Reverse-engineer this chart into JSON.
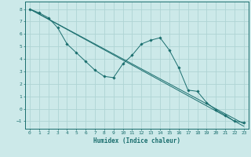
{
  "xlabel": "Humidex (Indice chaleur)",
  "bg_color": "#cce9e9",
  "line_color": "#1a6e6e",
  "grid_color": "#afd4d4",
  "xlim": [
    -0.5,
    23.5
  ],
  "ylim": [
    -1.6,
    8.6
  ],
  "xticks": [
    0,
    1,
    2,
    3,
    4,
    5,
    6,
    7,
    8,
    9,
    10,
    11,
    12,
    13,
    14,
    15,
    16,
    17,
    18,
    19,
    20,
    21,
    22,
    23
  ],
  "yticks": [
    -1,
    0,
    1,
    2,
    3,
    4,
    5,
    6,
    7,
    8
  ],
  "line_straight1": {
    "x": [
      0,
      23
    ],
    "y": [
      8.0,
      -1.2
    ]
  },
  "line_straight2": {
    "x": [
      0,
      23
    ],
    "y": [
      8.0,
      -1.4
    ]
  },
  "line_curve": {
    "x": [
      0,
      1,
      2,
      3,
      4,
      5,
      6,
      7,
      8,
      9,
      10,
      11,
      12,
      13,
      14,
      15,
      16,
      17,
      18,
      19,
      20,
      21,
      22,
      23
    ],
    "y": [
      8.0,
      7.7,
      7.3,
      6.5,
      5.2,
      4.5,
      3.8,
      3.1,
      2.6,
      2.5,
      3.6,
      4.3,
      5.2,
      5.5,
      5.7,
      4.7,
      3.3,
      1.5,
      1.4,
      0.5,
      -0.1,
      -0.5,
      -1.0,
      -1.1
    ]
  }
}
